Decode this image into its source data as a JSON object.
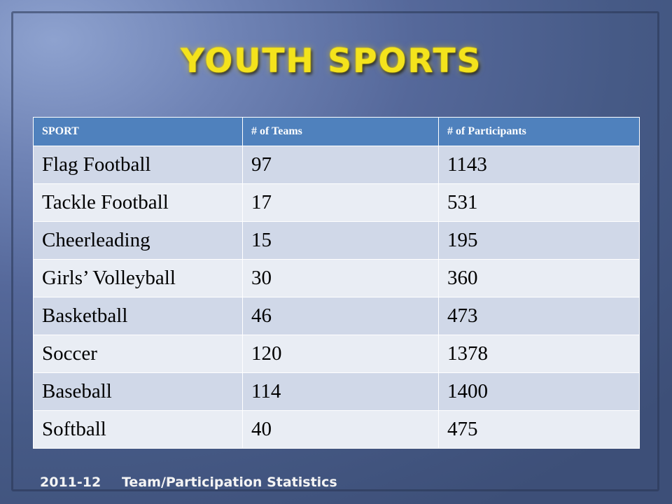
{
  "slide": {
    "title": "YOUTH SPORTS",
    "table": {
      "headers": [
        "SPORT",
        "# of Teams",
        "# of Participants"
      ],
      "rows": [
        [
          "Flag Football",
          "97",
          "1143"
        ],
        [
          "Tackle Football",
          "17",
          "531"
        ],
        [
          "Cheerleading",
          "15",
          "195"
        ],
        [
          "Girls’ Volleyball",
          "30",
          "360"
        ],
        [
          "Basketball",
          "46",
          "473"
        ],
        [
          "Soccer",
          "120",
          "1378"
        ],
        [
          "Baseball",
          "114",
          "1400"
        ],
        [
          "Softball",
          "40",
          "475"
        ]
      ]
    },
    "footer": {
      "year": "2011-12",
      "label": "Team/Participation Statistics"
    },
    "colors": {
      "title": "#f4e31c",
      "header_bg": "#4f81bd",
      "row_odd": "#d0d8e8",
      "row_even": "#e9edf4"
    }
  }
}
